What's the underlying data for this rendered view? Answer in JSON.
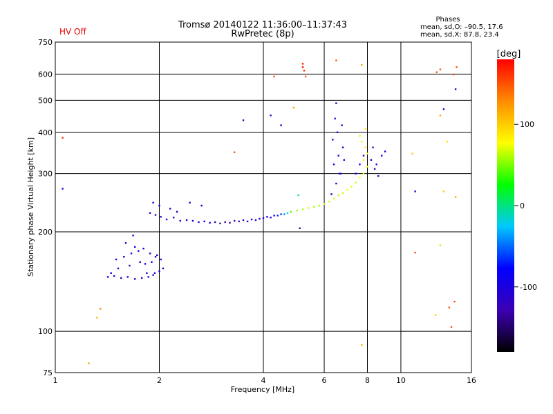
{
  "header": {
    "hv_status": "HV Off",
    "title_line1": "Tromsø 20140122 11:36:00–11:37:43",
    "title_line2": "RwPretec (8p)",
    "phase_title": "Phases",
    "phase_o": "mean, sd,O: –90.5, 17.6",
    "phase_x": "mean, sd,X:  87.8, 23.4"
  },
  "colors": {
    "grid": "#000000",
    "hv_text": "#e00000"
  },
  "chart_data": {
    "type": "scatter",
    "title": "Tromsø 20140122 11:36:00–11:37:43",
    "subtitle": "RwPretec (8p)",
    "xlabel": "Frequency [MHz]",
    "ylabel": "Stationary phase Virtual Height [km]",
    "x_scale": "log",
    "y_scale": "log",
    "xlim": [
      1,
      16
    ],
    "ylim": [
      75,
      750
    ],
    "x_ticks": [
      1,
      2,
      4,
      6,
      8,
      10,
      16
    ],
    "x_tick_labels": [
      "1",
      "2",
      "4",
      "6",
      "8",
      "10",
      "16"
    ],
    "y_ticks": [
      75,
      100,
      200,
      300,
      400,
      500,
      600,
      750
    ],
    "y_tick_labels": [
      "75",
      "100",
      "200",
      "300",
      "400",
      "500",
      "600",
      "750"
    ],
    "grid": true,
    "colorbar": {
      "label": "[deg]",
      "range": [
        -180,
        180
      ],
      "ticks": [
        100,
        0,
        -100
      ],
      "tick_labels": [
        "100",
        "0",
        "-100"
      ],
      "colormap": [
        "#000000",
        "#3c00b4",
        "#0000ff",
        "#00c8ff",
        "#00ff00",
        "#ffff00",
        "#ff8c00",
        "#ff0000"
      ]
    },
    "series": [
      {
        "x": [
          1.42,
          1.48,
          1.55,
          1.62,
          1.7,
          1.78,
          1.86,
          1.94,
          2.0,
          2.05,
          1.5,
          1.58,
          1.66,
          1.74,
          1.82,
          1.9,
          1.97,
          1.6,
          1.7,
          1.8,
          1.88,
          1.95,
          2.02,
          1.52,
          1.64,
          1.76,
          1.84,
          1.92,
          1.45,
          1.68
        ],
        "y": [
          146,
          147,
          145,
          146,
          144,
          145,
          146,
          150,
          152,
          155,
          165,
          168,
          172,
          175,
          160,
          162,
          170,
          185,
          180,
          178,
          172,
          168,
          165,
          155,
          158,
          162,
          150,
          148,
          150,
          195
        ],
        "phase": [
          -110,
          -105,
          -115,
          -108,
          -112,
          -100,
          -118,
          -106,
          -102,
          -110,
          -95,
          -120,
          -104,
          -112,
          -98,
          -115,
          -108,
          -125,
          -92,
          -110,
          -103,
          -118,
          -96,
          -112,
          -120,
          -100,
          -108,
          -114,
          -106,
          -98
        ]
      },
      {
        "x": [
          1.88,
          1.95,
          2.02,
          2.1,
          2.2,
          2.3,
          2.4,
          2.5,
          2.6,
          2.7,
          2.8,
          2.9,
          3.0,
          3.1,
          3.2,
          3.3,
          3.4,
          3.5,
          3.6,
          3.7,
          3.8,
          3.9,
          4.0,
          4.1,
          4.2,
          4.3,
          4.4,
          4.5,
          4.6,
          4.7,
          1.92,
          2.0,
          2.15,
          2.25,
          2.45,
          2.65
        ],
        "y": [
          228,
          225,
          222,
          218,
          221,
          216,
          217,
          216,
          214,
          215,
          213,
          214,
          212,
          214,
          213,
          216,
          215,
          217,
          215,
          218,
          217,
          219,
          220,
          222,
          221,
          224,
          224,
          226,
          226,
          228,
          245,
          240,
          235,
          230,
          245,
          240
        ],
        "phase": [
          -95,
          -105,
          -112,
          -100,
          -108,
          -90,
          -115,
          -102,
          -110,
          -98,
          -106,
          -120,
          -130,
          -125,
          -135,
          -128,
          -118,
          -110,
          -104,
          -96,
          -112,
          -100,
          -90,
          -106,
          -98,
          -80,
          -70,
          -60,
          -40,
          -20,
          -100,
          -110,
          -95,
          -105,
          -115,
          -85
        ]
      },
      {
        "x": [
          4.8,
          5.0,
          5.2,
          5.4,
          5.6,
          5.8,
          6.0,
          6.2,
          6.4,
          6.6,
          6.8,
          7.0,
          7.2,
          7.4,
          7.6,
          7.8,
          8.0,
          7.8,
          8.0,
          7.9,
          7.7,
          7.6,
          7.9
        ],
        "y": [
          230,
          232,
          234,
          236,
          238,
          240,
          243,
          247,
          252,
          258,
          262,
          268,
          274,
          282,
          292,
          300,
          315,
          330,
          345,
          360,
          375,
          390,
          410
        ],
        "phase": [
          40,
          55,
          60,
          65,
          62,
          58,
          70,
          66,
          72,
          60,
          68,
          75,
          70,
          64,
          80,
          72,
          78,
          85,
          76,
          90,
          82,
          70,
          88
        ]
      },
      {
        "x": [
          6.3,
          6.5,
          6.7,
          6.4,
          6.6,
          6.8,
          6.35,
          6.55,
          6.75,
          6.45,
          6.65,
          6.85,
          7.4,
          7.6,
          7.8,
          8.2,
          8.4,
          8.6,
          8.8,
          9.0,
          8.3,
          8.5
        ],
        "y": [
          260,
          280,
          300,
          320,
          340,
          360,
          380,
          400,
          420,
          440,
          300,
          330,
          300,
          320,
          340,
          330,
          310,
          295,
          340,
          350,
          360,
          320
        ],
        "phase": [
          -110,
          -100,
          -120,
          -95,
          -105,
          -115,
          -108,
          -100,
          -112,
          -118,
          -102,
          -106,
          -96,
          -104,
          -110,
          -100,
          -108,
          -112,
          -90,
          -102,
          -115,
          -98
        ]
      },
      {
        "x": [
          1.05,
          1.05,
          1.25,
          1.32,
          1.35,
          3.3,
          3.5,
          4.2,
          4.3,
          4.5,
          4.9,
          5.2,
          5.2,
          5.25,
          5.3,
          6.5,
          6.5,
          7.7,
          11.0,
          11.0,
          12.7,
          13.0,
          13.3,
          13.3,
          14.2,
          14.4,
          14.5,
          13.0,
          13.0,
          12.6,
          13.8,
          14.0,
          14.3,
          13.6,
          10.8,
          7.7,
          14.4,
          5.05,
          5.1
        ],
        "y": [
          385,
          270,
          80,
          110,
          117,
          348,
          435,
          450,
          590,
          420,
          475,
          645,
          630,
          615,
          590,
          660,
          490,
          640,
          265,
          173,
          608,
          620,
          470,
          265,
          598,
          540,
          630,
          450,
          182,
          112,
          118,
          103,
          123,
          375,
          345,
          91,
          255,
          258,
          205
        ],
        "phase": [
          160,
          -110,
          120,
          110,
          130,
          150,
          -120,
          -120,
          150,
          -100,
          120,
          170,
          175,
          165,
          150,
          150,
          -120,
          120,
          -120,
          150,
          150,
          150,
          -120,
          100,
          150,
          -120,
          150,
          120,
          60,
          100,
          150,
          150,
          150,
          90,
          100,
          110,
          120,
          0,
          -130
        ]
      }
    ]
  }
}
